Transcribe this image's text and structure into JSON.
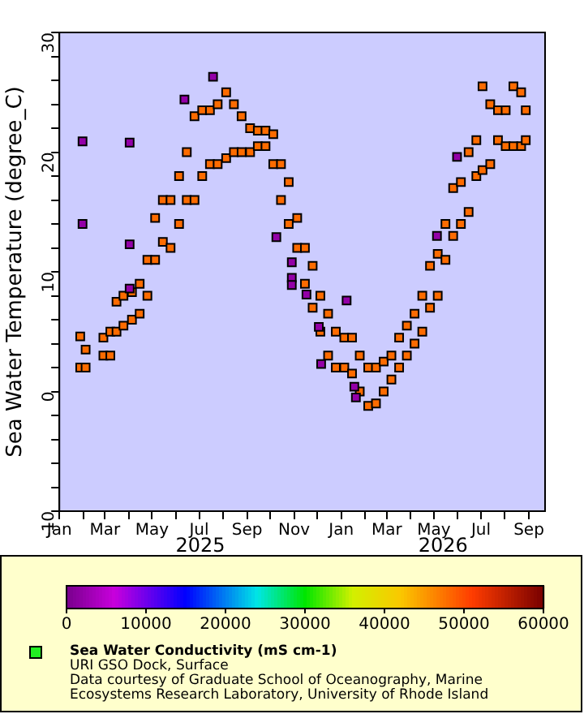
{
  "chart_data": {
    "type": "scatter",
    "ylabel": "Sea Water Temperature (degree_C)",
    "clabel": "Sea Water Conductivity (mS cm-1)",
    "annotations": [
      "2025",
      "2026",
      "URI GSO Dock, Surface",
      "Data courtesy of Graduate School of Oceanography, Marine",
      "Ecosystems Research Laboratory, University of Rhode Island"
    ],
    "marker": "square",
    "grid": false,
    "legend": false,
    "xlim": [
      "2025-01-01",
      "2026-09-22"
    ],
    "xticks": [
      {
        "value": "2025-01-01",
        "label": "Jan"
      },
      {
        "value": "2025-02-01",
        "label": null
      },
      {
        "value": "2025-03-01",
        "label": "Mar"
      },
      {
        "value": "2025-04-01",
        "label": null
      },
      {
        "value": "2025-05-01",
        "label": "May"
      },
      {
        "value": "2025-06-01",
        "label": null
      },
      {
        "value": "2025-07-01",
        "label": "Jul"
      },
      {
        "value": "2025-08-01",
        "label": null
      },
      {
        "value": "2025-09-01",
        "label": "Sep"
      },
      {
        "value": "2025-10-01",
        "label": null
      },
      {
        "value": "2025-11-01",
        "label": "Nov"
      },
      {
        "value": "2025-12-01",
        "label": null
      },
      {
        "value": "2026-01-01",
        "label": "Jan"
      },
      {
        "value": "2026-02-01",
        "label": null
      },
      {
        "value": "2026-03-01",
        "label": "Mar"
      },
      {
        "value": "2026-04-01",
        "label": null
      },
      {
        "value": "2026-05-01",
        "label": "May"
      },
      {
        "value": "2026-06-01",
        "label": null
      },
      {
        "value": "2026-07-01",
        "label": "Jul"
      },
      {
        "value": "2026-08-01",
        "label": null
      },
      {
        "value": "2026-09-01",
        "label": "Sep"
      }
    ],
    "ylim": [
      -10,
      30
    ],
    "yticks": [
      -10,
      {
        "value": -8,
        "label": null
      },
      {
        "value": -6,
        "label": null
      },
      {
        "value": -4,
        "label": null
      },
      {
        "value": -2,
        "label": null
      },
      0,
      {
        "value": 2,
        "label": null
      },
      {
        "value": 4,
        "label": null
      },
      {
        "value": 6,
        "label": null
      },
      {
        "value": 8,
        "label": null
      },
      10,
      {
        "value": 12,
        "label": null
      },
      {
        "value": 14,
        "label": null
      },
      {
        "value": 16,
        "label": null
      },
      {
        "value": 18,
        "label": null
      },
      20,
      {
        "value": 22,
        "label": null
      },
      {
        "value": 24,
        "label": null
      },
      {
        "value": 26,
        "label": null
      },
      {
        "value": 28,
        "label": null
      },
      30
    ],
    "clim": [
      0,
      60000
    ],
    "cticks": [
      0,
      10000,
      20000,
      30000,
      40000,
      50000,
      60000
    ],
    "series": [
      {
        "x": [
          "2025-01-28",
          "2025-01-28",
          "2025-02-04",
          "2025-02-04",
          "2025-02-27",
          "2025-02-27",
          "2025-03-08",
          "2025-03-08",
          "2025-03-16",
          "2025-03-16",
          "2025-03-25",
          "2025-03-25",
          "2025-04-05",
          "2025-04-05",
          "2025-04-15",
          "2025-04-15",
          "2025-04-25",
          "2025-04-25",
          "2025-05-05",
          "2025-05-05",
          "2025-05-15",
          "2025-05-15",
          "2025-05-25",
          "2025-05-25",
          "2025-06-05",
          "2025-06-05",
          "2025-06-15",
          "2025-06-15",
          "2025-06-25",
          "2025-06-25",
          "2025-07-05",
          "2025-07-05",
          "2025-07-15",
          "2025-07-15",
          "2025-07-25",
          "2025-07-25",
          "2025-08-05",
          "2025-08-05",
          "2025-08-15",
          "2025-08-15",
          "2025-08-25",
          "2025-08-25",
          "2025-09-05",
          "2025-09-05",
          "2025-09-15",
          "2025-09-15",
          "2025-09-25",
          "2025-09-25",
          "2025-10-05",
          "2025-10-05",
          "2025-10-15",
          "2025-10-15",
          "2025-10-25",
          "2025-10-25",
          "2025-11-05",
          "2025-11-05",
          "2025-11-15",
          "2025-11-15",
          "2025-11-25",
          "2025-11-25",
          "2025-12-05",
          "2025-12-05",
          "2025-12-15",
          "2025-12-15",
          "2025-12-25",
          "2025-12-25",
          "2026-01-05",
          "2026-01-05",
          "2026-01-15",
          "2026-01-15",
          "2026-01-25",
          "2026-01-25",
          "2026-02-05",
          "2026-02-05",
          "2026-02-15",
          "2026-02-15",
          "2026-02-25",
          "2026-02-25",
          "2026-03-07",
          "2026-03-07",
          "2026-03-17",
          "2026-03-17",
          "2026-03-27",
          "2026-03-27",
          "2026-04-06",
          "2026-04-06",
          "2026-04-16",
          "2026-04-16",
          "2026-04-26",
          "2026-04-26",
          "2026-05-06",
          "2026-05-06",
          "2026-05-16",
          "2026-05-16",
          "2026-05-26",
          "2026-05-26",
          "2026-06-05",
          "2026-06-05",
          "2026-06-15",
          "2026-06-15",
          "2026-06-25",
          "2026-06-25",
          "2026-07-03",
          "2026-07-03",
          "2026-07-13",
          "2026-07-13",
          "2026-07-23",
          "2026-07-23",
          "2026-08-02",
          "2026-08-02",
          "2026-08-12",
          "2026-08-12",
          "2026-08-22",
          "2026-08-22",
          "2026-08-28",
          "2026-08-28",
          "2025-01-31",
          "2025-01-31",
          "2025-04-02",
          "2025-04-02",
          "2025-04-02",
          "2025-06-12",
          "2025-07-19",
          "2025-10-09",
          "2025-10-29",
          "2025-10-29",
          "2025-10-29",
          "2025-11-17",
          "2025-12-03",
          "2025-12-06",
          "2026-01-08",
          "2026-01-18",
          "2026-01-20",
          "2026-05-05",
          "2026-05-31"
        ],
        "values": [
          2,
          4.6,
          2,
          3.5,
          3,
          4.5,
          3,
          5,
          5,
          7.5,
          5.5,
          8,
          6,
          8.3,
          6.5,
          9,
          8,
          11,
          11,
          14.5,
          12.5,
          16,
          12,
          16,
          14,
          18,
          16,
          20,
          16,
          23,
          18,
          23.5,
          19,
          23.5,
          19,
          24,
          19.5,
          25,
          20,
          24,
          20,
          23,
          20,
          22,
          20.5,
          21.8,
          20.5,
          21.8,
          19,
          21.5,
          16,
          19,
          14,
          17.5,
          12,
          14.5,
          9,
          12,
          7,
          10.5,
          5,
          8,
          3,
          6.5,
          2,
          5,
          2,
          4.5,
          1.5,
          4.5,
          0,
          3,
          -1.2,
          2,
          -1,
          2,
          0,
          2.5,
          1,
          3,
          2,
          4.5,
          3,
          5.5,
          4,
          6.5,
          5,
          8,
          7,
          10.5,
          8,
          11.5,
          11,
          14,
          13,
          17,
          14,
          17.5,
          15,
          20,
          18,
          21,
          18.5,
          25.5,
          19,
          24,
          21,
          23.5,
          20.5,
          23.5,
          20.5,
          25.5,
          20.5,
          25,
          21,
          23.5,
          20.9,
          14,
          20.8,
          12.3,
          8.6,
          24.4,
          26.3,
          12.9,
          10.8,
          9.5,
          8.9,
          8.1,
          5.4,
          2.3,
          7.6,
          0.4,
          -0.5,
          13,
          19.6
        ],
        "cvalues": [
          48000,
          48000,
          48000,
          48000,
          48000,
          48000,
          48000,
          48000,
          48000,
          48000,
          48000,
          48000,
          48000,
          48000,
          48000,
          48000,
          48000,
          48000,
          48000,
          48000,
          48000,
          48000,
          48000,
          48000,
          48000,
          48000,
          48000,
          48000,
          48000,
          48000,
          48000,
          48000,
          48000,
          48000,
          48000,
          48000,
          48000,
          48000,
          48000,
          48000,
          48000,
          48000,
          48000,
          48000,
          48000,
          48000,
          48000,
          48000,
          48000,
          48000,
          48000,
          48000,
          48000,
          48000,
          48000,
          48000,
          48000,
          48000,
          48000,
          48000,
          48000,
          48000,
          48000,
          48000,
          48000,
          48000,
          48000,
          48000,
          48000,
          48000,
          48000,
          48000,
          48000,
          48000,
          48000,
          48000,
          48000,
          48000,
          48000,
          48000,
          48000,
          48000,
          48000,
          48000,
          48000,
          48000,
          48000,
          48000,
          48000,
          48000,
          48000,
          48000,
          48000,
          48000,
          48000,
          48000,
          48000,
          48000,
          48000,
          48000,
          48000,
          48000,
          48000,
          48000,
          48000,
          48000,
          48000,
          48000,
          48000,
          48000,
          48000,
          48000,
          48000,
          48000,
          48000,
          48000,
          2000,
          2000,
          2000,
          2000,
          2000,
          2000,
          2000,
          2000,
          2000,
          2000,
          2000,
          2000,
          2000,
          2000,
          2000,
          2000,
          2000,
          2000,
          2000
        ]
      }
    ]
  }
}
